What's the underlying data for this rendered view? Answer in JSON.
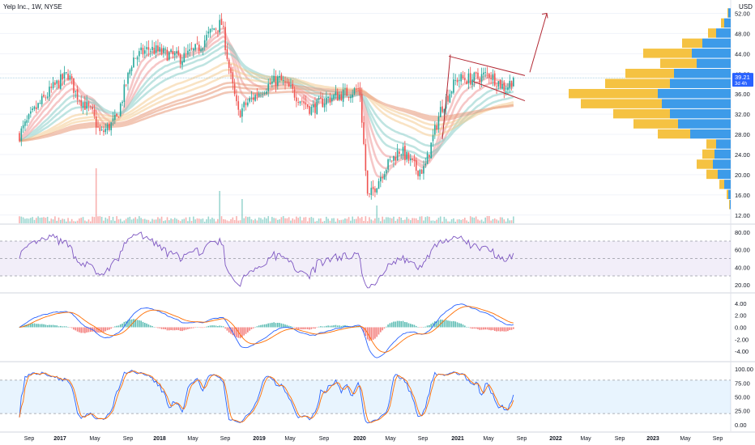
{
  "header": {
    "symbol_line": "Yelp Inc., 1W, NYSE",
    "currency": "USD"
  },
  "price_tag": {
    "value": "39.21",
    "countdown": "3d 4h"
  },
  "colors": {
    "up": "#26a69a",
    "down": "#ef5350",
    "flag": "#b22833",
    "profile_yellow": "#f5c242",
    "profile_blue": "#3d9be9",
    "rsi_line": "#7e57c2",
    "macd_line": "#2962ff",
    "signal_line": "#ff6d00",
    "stoch_k": "#2962ff",
    "stoch_d": "#ff6d00",
    "grid": "#f0f3fa"
  },
  "x_axis": {
    "ticks": [
      "Sep",
      "2017",
      "May",
      "Sep",
      "2018",
      "May",
      "Sep",
      "2019",
      "May",
      "Sep",
      "2020",
      "May",
      "Sep",
      "2021",
      "May",
      "Sep",
      "2022",
      "May",
      "Sep",
      "2023",
      "May",
      "Sep"
    ],
    "bold_ticks": [
      "2017",
      "2018",
      "2019",
      "2020",
      "2021",
      "2022",
      "2023"
    ]
  },
  "chart_data": [
    {
      "type": "candlestick",
      "panel": "price",
      "y_ticks": [
        "52.00",
        "48.00",
        "44.00",
        "40.00",
        "36.00",
        "32.00",
        "28.00",
        "24.00",
        "20.00",
        "16.00",
        "12.00"
      ],
      "ylim": [
        11,
        54
      ],
      "last_price": 39.21,
      "anchor_closes": [
        {
          "x": "2016-08",
          "y": 28
        },
        {
          "x": "2016-10",
          "y": 33
        },
        {
          "x": "2016-12",
          "y": 37
        },
        {
          "x": "2017-02",
          "y": 40
        },
        {
          "x": "2017-03",
          "y": 36
        },
        {
          "x": "2017-05",
          "y": 32
        },
        {
          "x": "2017-06",
          "y": 28
        },
        {
          "x": "2017-08",
          "y": 31
        },
        {
          "x": "2017-10",
          "y": 43
        },
        {
          "x": "2017-12",
          "y": 45
        },
        {
          "x": "2018-02",
          "y": 44
        },
        {
          "x": "2018-04",
          "y": 43
        },
        {
          "x": "2018-06",
          "y": 45
        },
        {
          "x": "2018-08",
          "y": 49
        },
        {
          "x": "2018-09",
          "y": 50
        },
        {
          "x": "2018-10",
          "y": 40
        },
        {
          "x": "2018-11",
          "y": 32
        },
        {
          "x": "2018-12",
          "y": 34
        },
        {
          "x": "2019-02",
          "y": 37
        },
        {
          "x": "2019-04",
          "y": 39
        },
        {
          "x": "2019-06",
          "y": 36
        },
        {
          "x": "2019-08",
          "y": 33
        },
        {
          "x": "2019-10",
          "y": 35
        },
        {
          "x": "2019-12",
          "y": 36
        },
        {
          "x": "2020-02",
          "y": 37
        },
        {
          "x": "2020-03",
          "y": 15
        },
        {
          "x": "2020-05",
          "y": 21
        },
        {
          "x": "2020-07",
          "y": 25
        },
        {
          "x": "2020-09",
          "y": 21
        },
        {
          "x": "2020-10",
          "y": 21
        },
        {
          "x": "2020-12",
          "y": 33
        },
        {
          "x": "2021-02",
          "y": 39
        },
        {
          "x": "2021-04",
          "y": 39
        },
        {
          "x": "2021-06",
          "y": 40
        },
        {
          "x": "2021-08",
          "y": 37
        },
        {
          "x": "2021-09",
          "y": 39.21
        }
      ],
      "flag_channel": {
        "upper": [
          {
            "x": "2021-01",
            "y": 43.5
          },
          {
            "x": "2021-09",
            "y": 39.5
          }
        ],
        "lower": [
          {
            "x": "2021-04",
            "y": 38.5
          },
          {
            "x": "2021-09",
            "y": 34.5
          }
        ],
        "pole_start": {
          "x": "2020-12",
          "y": 27
        },
        "target_arrow_end": {
          "x": "2021-12",
          "y": 52
        }
      },
      "volume_profile": [
        {
          "price": 52,
          "yellow": 1,
          "blue": 3
        },
        {
          "price": 50,
          "yellow": 4,
          "blue": 8
        },
        {
          "price": 48,
          "yellow": 10,
          "blue": 18
        },
        {
          "price": 46,
          "yellow": 25,
          "blue": 35
        },
        {
          "price": 44,
          "yellow": 60,
          "blue": 48
        },
        {
          "price": 42,
          "yellow": 45,
          "blue": 42
        },
        {
          "price": 40,
          "yellow": 60,
          "blue": 70
        },
        {
          "price": 38,
          "yellow": 80,
          "blue": 75
        },
        {
          "price": 36,
          "yellow": 110,
          "blue": 90
        },
        {
          "price": 34,
          "yellow": 100,
          "blue": 85
        },
        {
          "price": 32,
          "yellow": 70,
          "blue": 75
        },
        {
          "price": 30,
          "yellow": 55,
          "blue": 65
        },
        {
          "price": 28,
          "yellow": 40,
          "blue": 50
        },
        {
          "price": 26,
          "yellow": 12,
          "blue": 18
        },
        {
          "price": 24,
          "yellow": 15,
          "blue": 20
        },
        {
          "price": 22,
          "yellow": 20,
          "blue": 22
        },
        {
          "price": 20,
          "yellow": 14,
          "blue": 16
        },
        {
          "price": 18,
          "yellow": 6,
          "blue": 8
        },
        {
          "price": 16,
          "yellow": 2,
          "blue": 3
        },
        {
          "price": 14,
          "yellow": 1,
          "blue": 1
        }
      ]
    },
    {
      "type": "line",
      "panel": "rsi",
      "y_ticks": [
        "80.00",
        "60.00",
        "40.00",
        "20.00"
      ],
      "ylim": [
        17,
        83
      ],
      "bands": [
        70,
        50,
        30
      ]
    },
    {
      "type": "histogram",
      "panel": "macd",
      "y_ticks": [
        "4.00",
        "2.00",
        "0.00",
        "-2.00",
        "-4.00"
      ],
      "ylim": [
        -4.8,
        4.8
      ]
    },
    {
      "type": "line",
      "panel": "stochastic",
      "y_ticks": [
        "100.00",
        "75.00",
        "50.00",
        "25.00",
        "0.00"
      ],
      "ylim": [
        -3,
        103
      ],
      "bands": [
        80,
        20
      ]
    }
  ]
}
